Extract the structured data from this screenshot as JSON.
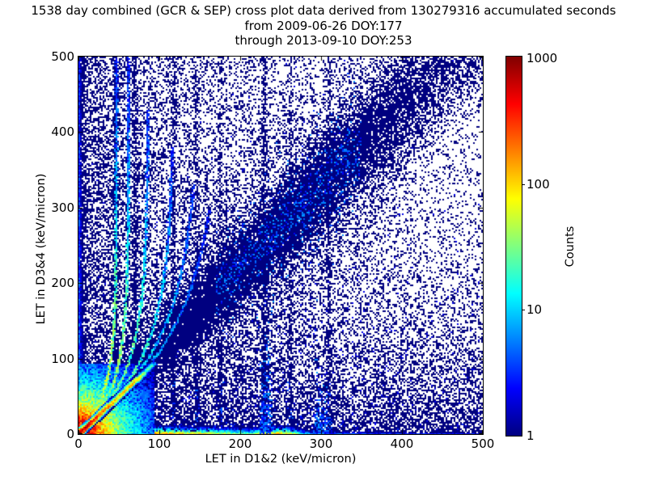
{
  "chart_data": {
    "type": "heatmap",
    "title": "1538 day combined (GCR & SEP) cross plot data derived from 130279316 accumulated seconds",
    "subtitles": [
      "from 2009-06-26 DOY:177",
      "through 2013-09-10 DOY:253"
    ],
    "xlabel": "LET in D1&2 (keV/micron)",
    "ylabel": "LET in D3&4 (keV/micron)",
    "xlim": [
      0,
      500
    ],
    "ylim": [
      0,
      500
    ],
    "x_ticks": [
      "0",
      "100",
      "200",
      "300",
      "400",
      "500"
    ],
    "y_ticks": [
      "0",
      "100",
      "200",
      "300",
      "400",
      "500"
    ],
    "grid": false,
    "background": "#ffffff",
    "point_color_min": "#000080",
    "colorbar": {
      "label": "Counts",
      "scale": "log",
      "min": 1,
      "max": 1000,
      "tick_labels": [
        "1000",
        "100",
        "10",
        "1"
      ],
      "colormap": "jet"
    },
    "features": {
      "bg_exp_x": {
        "n": 13000,
        "scale": 180
      },
      "bg_exp_y": {
        "n": 13000,
        "scale": 110
      },
      "bg_uniform": {
        "n": 3200
      },
      "diagonal_band": {
        "n": 26000,
        "slope": 1.07,
        "intercept": 6,
        "sigma_base": 15,
        "sigma_slope": 0.05,
        "x_mean": 255,
        "x_sd": 95,
        "mix_gauss": 0.55,
        "tail_frac": 0.25,
        "tail_mult": 2.6,
        "bright_x": [
          170,
          350
        ]
      },
      "left_column": {
        "cols": 5,
        "amp": 30,
        "decay": 25,
        "floor_amp": 3.5,
        "floor_decay": 300,
        "base": 1.8
      },
      "bottom_band": {
        "rows": 6,
        "amp": 950,
        "decay": 52,
        "bump_x": 245,
        "bump_amp": 120,
        "bump_sd": 20,
        "base": 2.2,
        "row_decay": 1.1
      },
      "origin_hotspot": {
        "extent": 94,
        "a1": 1600,
        "s1": 10.5,
        "a2": 140,
        "s2": 24,
        "a3": 12,
        "s3": 42
      },
      "identity_line": {
        "t_max": 82,
        "amp": 900,
        "decay": 22,
        "seg_center": 66,
        "seg_amp": 60,
        "seg_sd": 11,
        "halo_sd": 2.4,
        "tail_center": 86,
        "tail_amp": 25,
        "tail_sd": 7
      },
      "fan_streaks": [
        {
          "x0": 14,
          "xf": 47,
          "h": 55,
          "ymax": 500,
          "c0": 70
        },
        {
          "x0": 20,
          "xf": 62,
          "h": 60,
          "ymax": 500,
          "c0": 55
        },
        {
          "x0": 27,
          "xf": 86,
          "h": 75,
          "ymax": 430,
          "c0": 40
        },
        {
          "x0": 35,
          "xf": 118,
          "h": 90,
          "ymax": 380,
          "c0": 26
        },
        {
          "x0": 45,
          "xf": 150,
          "h": 110,
          "ymax": 330,
          "c0": 16
        },
        {
          "x0": 58,
          "xf": 178,
          "h": 120,
          "ymax": 300,
          "c0": 10
        }
      ],
      "vertical_streaks": [
        {
          "x": 46,
          "n": 900
        },
        {
          "x": 70,
          "n": 700
        },
        {
          "x": 118,
          "n": 520
        },
        {
          "x": 146,
          "n": 460
        },
        {
          "x": 176,
          "n": 360
        },
        {
          "x": 230,
          "n": 900
        },
        {
          "x": 262,
          "n": 380
        },
        {
          "x": 310,
          "n": 420
        }
      ],
      "bottom_blobs": [
        {
          "x": 232,
          "n": 260,
          "y_scale": 35,
          "x_spread": 14
        },
        {
          "x": 300,
          "n": 150,
          "y_scale": 25,
          "x_spread": 18
        }
      ]
    }
  }
}
